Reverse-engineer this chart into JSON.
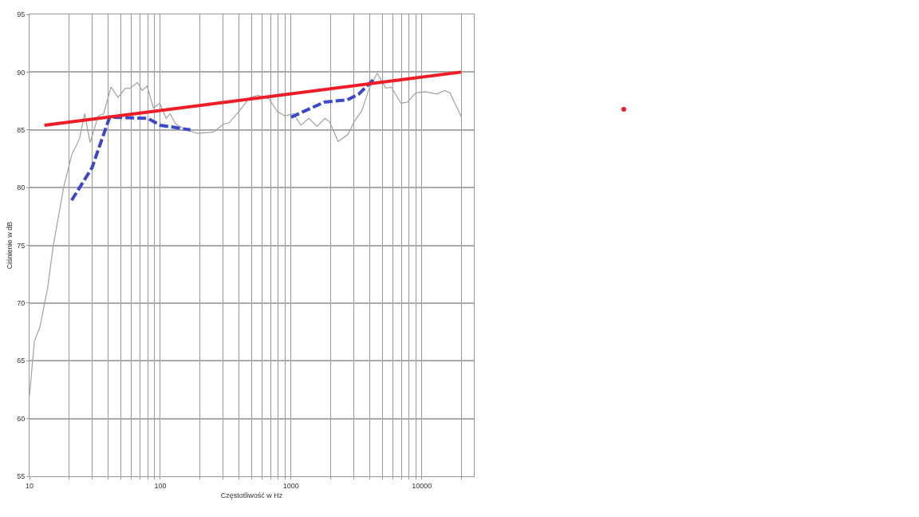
{
  "chart_data": {
    "type": "line",
    "xlabel": "Częstotliwość w Hz",
    "ylabel": "Ciśnienie w dB",
    "log": "x",
    "grid": true,
    "marker": "none",
    "xlim": [
      10,
      25000
    ],
    "ylim": [
      55,
      95
    ],
    "xticks": [
      10,
      {
        "value": 20,
        "label": null
      },
      {
        "value": 30,
        "label": null
      },
      {
        "value": 40,
        "label": null
      },
      {
        "value": 50,
        "label": null
      },
      {
        "value": 60,
        "label": null
      },
      {
        "value": 70,
        "label": null
      },
      {
        "value": 80,
        "label": null
      },
      {
        "value": 90,
        "label": null
      },
      100,
      {
        "value": 200,
        "label": null
      },
      {
        "value": 300,
        "label": null
      },
      {
        "value": 400,
        "label": null
      },
      {
        "value": 500,
        "label": null
      },
      {
        "value": 600,
        "label": null
      },
      {
        "value": 700,
        "label": null
      },
      {
        "value": 800,
        "label": null
      },
      {
        "value": 900,
        "label": null
      },
      1000,
      {
        "value": 2000,
        "label": null
      },
      {
        "value": 3000,
        "label": null
      },
      {
        "value": 4000,
        "label": null
      },
      {
        "value": 5000,
        "label": null
      },
      {
        "value": 6000,
        "label": null
      },
      {
        "value": 7000,
        "label": null
      },
      {
        "value": 8000,
        "label": null
      },
      {
        "value": 9000,
        "label": null
      },
      10000,
      {
        "value": 20000,
        "label": null
      }
    ],
    "yticks": [
      55,
      60,
      65,
      70,
      75,
      80,
      85,
      90,
      95
    ],
    "series": [
      {
        "color": "#a0a0a0",
        "line_style": "solid",
        "x": [
          10,
          10.9,
          12,
          13.8,
          15.2,
          18.3,
          21.1,
          23.2,
          24.2,
          26.4,
          29.1,
          33.5,
          36.9,
          42,
          47.6,
          54,
          58.9,
          66.9,
          72.6,
          79.2,
          88.6,
          99.2,
          111,
          119,
          131,
          157,
          192,
          253,
          305,
          335,
          400,
          483,
          557,
          677,
          782,
          899,
          1040,
          1190,
          1370,
          1580,
          1820,
          1970,
          2290,
          2720,
          3040,
          3490,
          3960,
          4560,
          5300,
          5840,
          6930,
          7770,
          8990,
          10600,
          13000,
          15000,
          16400,
          20100
        ],
        "values": [
          62,
          66.7,
          67.9,
          71.4,
          75,
          80.1,
          82.9,
          83.8,
          84.3,
          86.4,
          83.9,
          86.2,
          86.4,
          88.7,
          87.8,
          88.6,
          88.6,
          89.1,
          88.4,
          88.8,
          86.9,
          87.3,
          86,
          86.4,
          85.5,
          85,
          84.7,
          84.8,
          85.5,
          85.6,
          86.6,
          87.8,
          88,
          87.7,
          86.6,
          86.2,
          86.4,
          85.4,
          86,
          85.3,
          86,
          85.7,
          84,
          84.6,
          85.7,
          86.7,
          88.6,
          89.9,
          88.6,
          88.7,
          87.3,
          87.4,
          88.2,
          88.3,
          88.1,
          88.4,
          88.2,
          86.1
        ]
      },
      {
        "color": "#3a48d0",
        "line_style": "dashed",
        "x": [
          21,
          30,
          41,
          80,
          100,
          170,
          300,
          1000,
          1800,
          2700,
          3300,
          4400
        ],
        "values": [
          78.9,
          81.7,
          86.1,
          86,
          85.4,
          85,
          null,
          86.1,
          87.4,
          87.6,
          88.1,
          89.5
        ]
      },
      {
        "color": "#ee1c24",
        "line_style": "solid",
        "x": [
          13,
          20000
        ],
        "values": [
          85.4,
          90
        ]
      }
    ]
  }
}
